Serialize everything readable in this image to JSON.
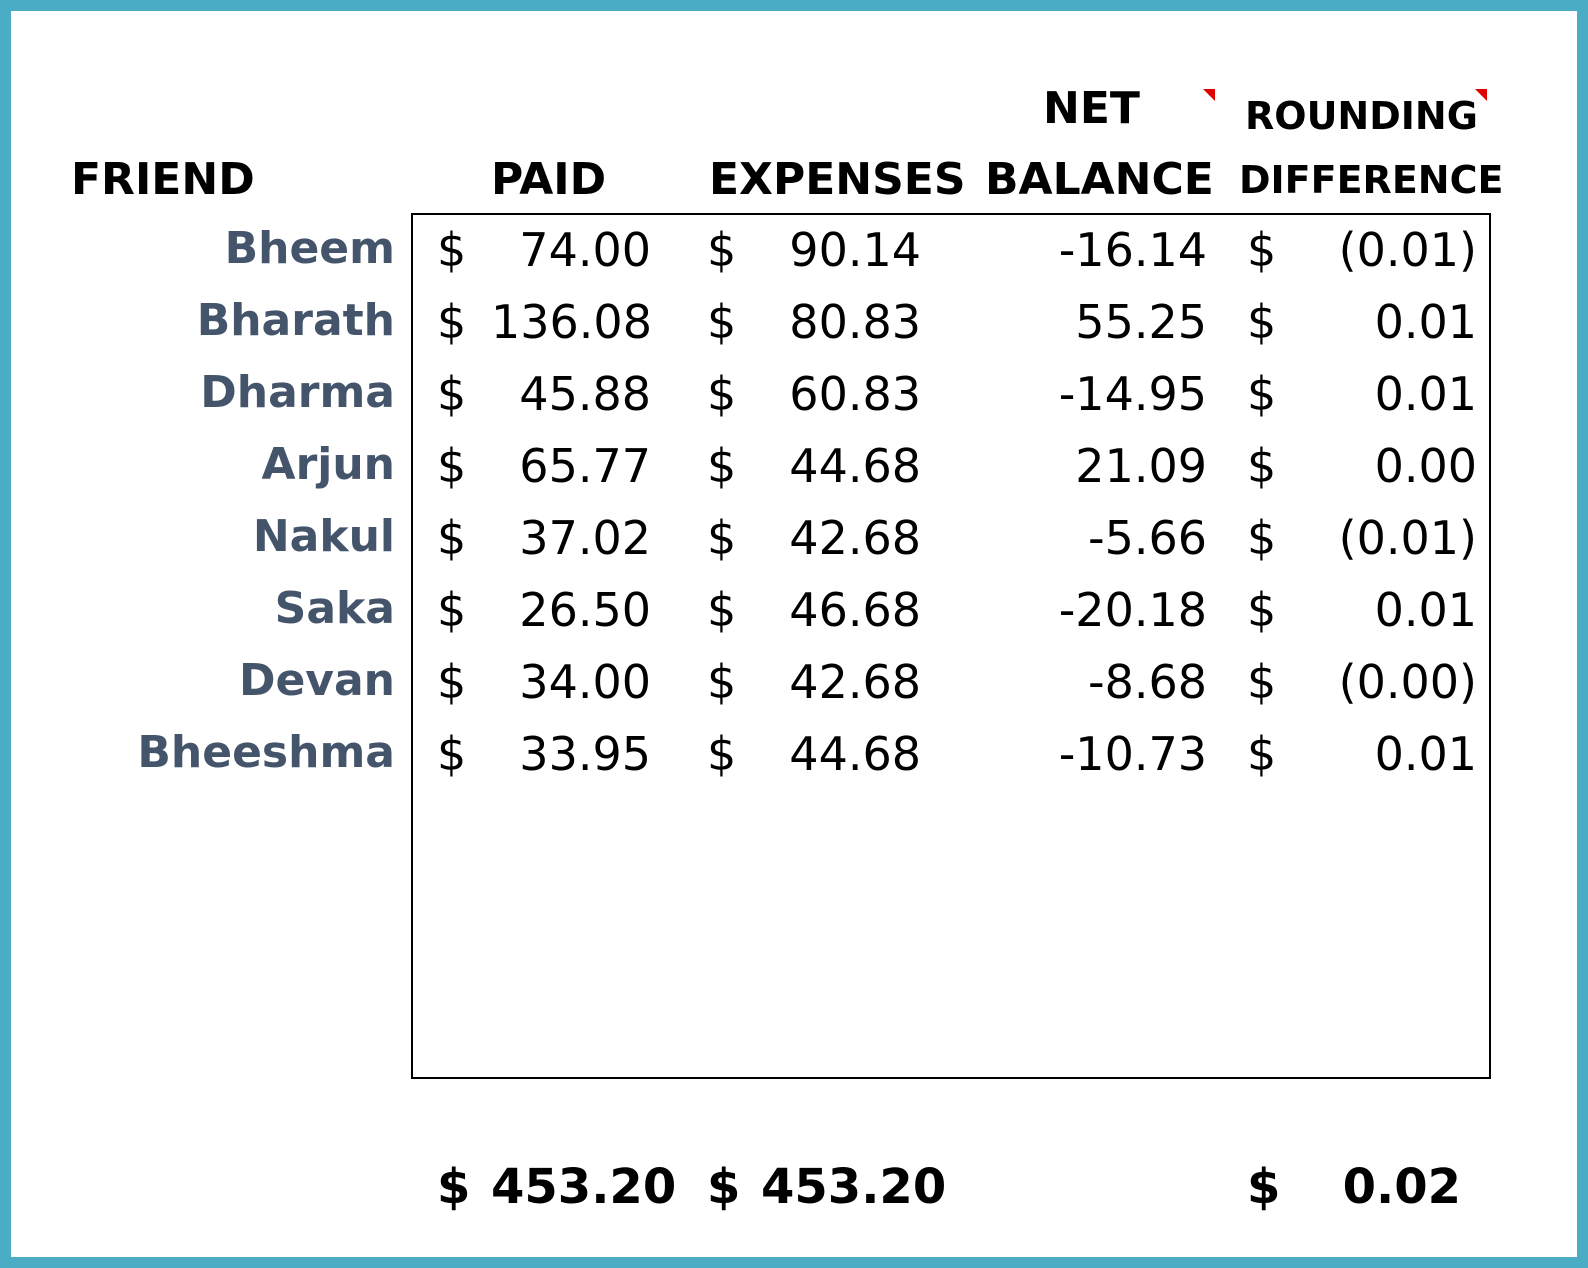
{
  "headers": {
    "friend": "FRIEND",
    "paid": "PAID",
    "expenses": "EXPENSES",
    "net_line1": "NET",
    "net_line2": "BALANCE",
    "rounding_line1": "ROUNDING",
    "rounding_line2": "DIFFERENCE"
  },
  "currency_symbol": "$",
  "rows": [
    {
      "friend": "Bheem",
      "paid": "74.00",
      "expenses": "90.14",
      "net": "-16.14",
      "rounding": "(0.01)"
    },
    {
      "friend": "Bharath",
      "paid": "136.08",
      "expenses": "80.83",
      "net": "55.25",
      "rounding": "0.01"
    },
    {
      "friend": "Dharma",
      "paid": "45.88",
      "expenses": "60.83",
      "net": "-14.95",
      "rounding": "0.01"
    },
    {
      "friend": "Arjun",
      "paid": "65.77",
      "expenses": "44.68",
      "net": "21.09",
      "rounding": "0.00"
    },
    {
      "friend": "Nakul",
      "paid": "37.02",
      "expenses": "42.68",
      "net": "-5.66",
      "rounding": "(0.01)"
    },
    {
      "friend": "Saka",
      "paid": "26.50",
      "expenses": "46.68",
      "net": "-20.18",
      "rounding": "0.01"
    },
    {
      "friend": "Devan",
      "paid": "34.00",
      "expenses": "42.68",
      "net": "-8.68",
      "rounding": "(0.00)"
    },
    {
      "friend": "Bheeshma",
      "paid": "33.95",
      "expenses": "44.68",
      "net": "-10.73",
      "rounding": "0.01"
    }
  ],
  "totals": {
    "paid": "453.20",
    "expenses": "453.20",
    "rounding": "0.02"
  },
  "colors": {
    "frame_border": "#4BACC6",
    "friend_name": "#44546A",
    "comment_indicator": "#E00000"
  }
}
